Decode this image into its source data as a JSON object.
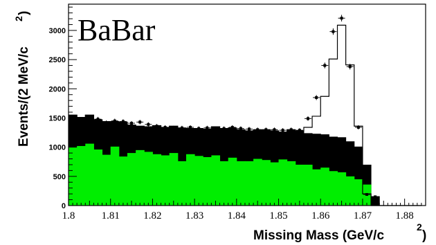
{
  "chart_data": {
    "type": "bar",
    "label": "BaBar",
    "xlabel": "Missing Mass (GeV/c",
    "xlabel_sup": "2",
    "xlabel_close": ")",
    "ylabel": "Events/(2 MeV/c",
    "ylabel_sup": "2",
    "ylabel_close": ")",
    "xlim": [
      1.8,
      1.885
    ],
    "ylim": [
      0,
      3450
    ],
    "xticks": [
      "1.8",
      "1.81",
      "1.82",
      "1.83",
      "1.84",
      "1.85",
      "1.86",
      "1.87",
      "1.88"
    ],
    "yticks": [
      "0",
      "500",
      "1000",
      "1500",
      "2000",
      "2500",
      "3000"
    ],
    "bin_width": 0.002,
    "bin_start": 1.8,
    "series": [
      {
        "kind": "green-component",
        "color": "#00ee00",
        "values": [
          1000,
          1020,
          1060,
          960,
          870,
          1010,
          840,
          900,
          950,
          920,
          880,
          860,
          900,
          760,
          880,
          850,
          830,
          860,
          760,
          820,
          760,
          760,
          800,
          780,
          740,
          790,
          760,
          700,
          700,
          620,
          650,
          590,
          570,
          500,
          450,
          360,
          0,
          0,
          0,
          0,
          0,
          0
        ]
      },
      {
        "kind": "black-component",
        "color": "#000000",
        "values": [
          1550,
          1510,
          1550,
          1470,
          1440,
          1440,
          1430,
          1380,
          1360,
          1350,
          1370,
          1340,
          1360,
          1330,
          1320,
          1320,
          1310,
          1350,
          1320,
          1330,
          1300,
          1280,
          1300,
          1300,
          1280,
          1260,
          1300,
          1280,
          1240,
          1230,
          1220,
          1180,
          1170,
          1100,
          1010,
          700,
          160,
          0,
          0,
          0,
          0,
          0
        ]
      },
      {
        "kind": "total-outline",
        "color": "#000000",
        "values": [
          1550,
          1510,
          1550,
          1470,
          1440,
          1440,
          1430,
          1380,
          1360,
          1350,
          1370,
          1340,
          1360,
          1330,
          1320,
          1320,
          1310,
          1350,
          1320,
          1330,
          1300,
          1280,
          1300,
          1300,
          1280,
          1260,
          1300,
          1280,
          1340,
          1530,
          1870,
          2510,
          3090,
          2410,
          1360,
          200,
          0,
          0,
          0,
          0,
          0,
          0
        ]
      }
    ],
    "points": {
      "kind": "data-points",
      "x": [
        1.805,
        1.807,
        1.809,
        1.811,
        1.813,
        1.815,
        1.817,
        1.819,
        1.821,
        1.823,
        1.825,
        1.827,
        1.829,
        1.831,
        1.833,
        1.835,
        1.837,
        1.839,
        1.841,
        1.843,
        1.845,
        1.847,
        1.849,
        1.851,
        1.853,
        1.855,
        1.857,
        1.859,
        1.861,
        1.863,
        1.865,
        1.867,
        1.869,
        1.871,
        1.873
      ],
      "y": [
        1460,
        1480,
        1420,
        1450,
        1440,
        1410,
        1430,
        1390,
        1360,
        1340,
        1330,
        1330,
        1340,
        1320,
        1330,
        1320,
        1320,
        1340,
        1320,
        1310,
        1300,
        1300,
        1300,
        1290,
        1300,
        1290,
        1490,
        1850,
        2400,
        2980,
        3210,
        2380,
        1340,
        190,
        150
      ]
    }
  }
}
